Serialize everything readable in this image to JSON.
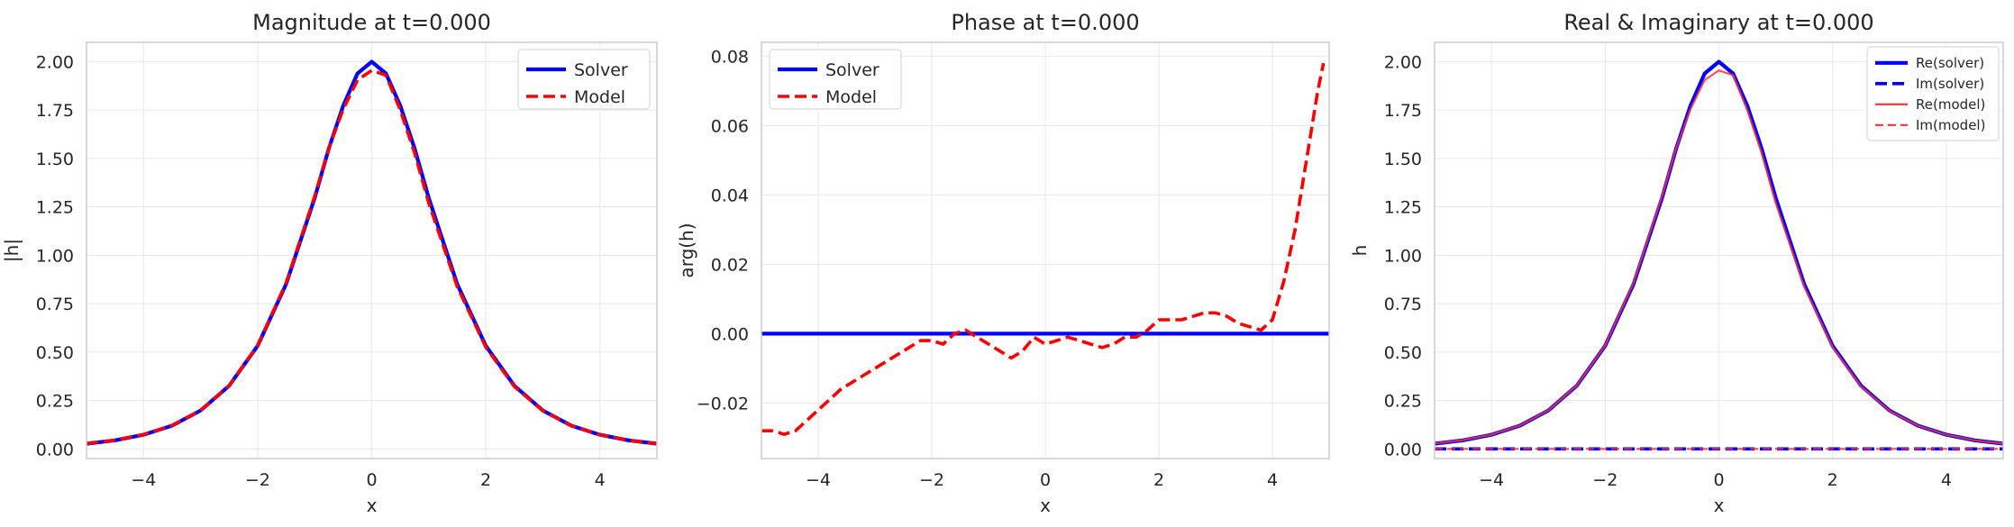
{
  "chart_data": [
    {
      "type": "line",
      "title": "Magnitude at t=0.000",
      "xlabel": "x",
      "ylabel": "|h|",
      "xlim": [
        -5.0,
        5.0
      ],
      "ylim": [
        -0.05,
        2.1
      ],
      "xticks": [
        -4,
        -2,
        0,
        2,
        4
      ],
      "xtick_labels": [
        "−4",
        "−2",
        "0",
        "2",
        "4"
      ],
      "yticks": [
        0.0,
        0.25,
        0.5,
        0.75,
        1.0,
        1.25,
        1.5,
        1.75,
        2.0
      ],
      "ytick_labels": [
        "0.00",
        "0.25",
        "0.50",
        "0.75",
        "1.00",
        "1.25",
        "1.50",
        "1.75",
        "2.00"
      ],
      "grid": true,
      "legend": "top-right",
      "x": [
        -5.0,
        -4.5,
        -4.0,
        -3.5,
        -3.0,
        -2.5,
        -2.0,
        -1.5,
        -1.0,
        -0.75,
        -0.5,
        -0.25,
        0.0,
        0.25,
        0.5,
        0.75,
        1.0,
        1.5,
        2.0,
        2.5,
        3.0,
        3.5,
        4.0,
        4.5,
        5.0
      ],
      "series": [
        {
          "name": "Solver",
          "color": "#0000ff",
          "style": "solid",
          "values": [
            0.027,
            0.044,
            0.073,
            0.12,
            0.198,
            0.326,
            0.532,
            0.851,
            1.296,
            1.553,
            1.773,
            1.939,
            2.0,
            1.939,
            1.773,
            1.553,
            1.296,
            0.851,
            0.532,
            0.326,
            0.198,
            0.12,
            0.073,
            0.044,
            0.027
          ]
        },
        {
          "name": "Model",
          "color": "#ff0000",
          "style": "dashed",
          "values": [
            0.028,
            0.045,
            0.074,
            0.121,
            0.199,
            0.327,
            0.534,
            0.858,
            1.305,
            1.555,
            1.755,
            1.905,
            1.955,
            1.93,
            1.75,
            1.53,
            1.27,
            0.838,
            0.525,
            0.322,
            0.196,
            0.12,
            0.073,
            0.044,
            0.027
          ]
        }
      ]
    },
    {
      "type": "line",
      "title": "Phase at t=0.000",
      "xlabel": "x",
      "ylabel": "arg(h)",
      "xlim": [
        -5.0,
        5.0
      ],
      "ylim": [
        -0.036,
        0.084
      ],
      "xticks": [
        -4,
        -2,
        0,
        2,
        4
      ],
      "xtick_labels": [
        "−4",
        "−2",
        "0",
        "2",
        "4"
      ],
      "yticks": [
        -0.02,
        0.0,
        0.02,
        0.04,
        0.06,
        0.08
      ],
      "ytick_labels": [
        "−0.02",
        "0.00",
        "0.02",
        "0.04",
        "0.06",
        "0.08"
      ],
      "grid": true,
      "legend": "top-left",
      "series": [
        {
          "name": "Solver",
          "color": "#0000ff",
          "style": "solid",
          "x": [
            -5.0,
            5.0
          ],
          "values": [
            0.0,
            0.0
          ]
        },
        {
          "name": "Model",
          "color": "#ff0000",
          "style": "dashed",
          "x": [
            -5.0,
            -4.8,
            -4.6,
            -4.4,
            -4.2,
            -4.0,
            -3.8,
            -3.6,
            -3.4,
            -3.2,
            -3.0,
            -2.8,
            -2.6,
            -2.4,
            -2.2,
            -2.0,
            -1.8,
            -1.6,
            -1.4,
            -1.2,
            -1.0,
            -0.8,
            -0.6,
            -0.4,
            -0.2,
            0.0,
            0.2,
            0.4,
            0.6,
            0.8,
            1.0,
            1.2,
            1.4,
            1.6,
            1.8,
            2.0,
            2.2,
            2.4,
            2.6,
            2.8,
            3.0,
            3.2,
            3.4,
            3.6,
            3.8,
            4.0,
            4.2,
            4.4,
            4.6,
            4.8,
            4.9
          ],
          "values": [
            -0.028,
            -0.028,
            -0.029,
            -0.028,
            -0.025,
            -0.022,
            -0.019,
            -0.016,
            -0.014,
            -0.012,
            -0.01,
            -0.008,
            -0.006,
            -0.004,
            -0.002,
            -0.002,
            -0.003,
            0.0,
            0.001,
            -0.001,
            -0.003,
            -0.005,
            -0.007,
            -0.005,
            -0.001,
            -0.003,
            -0.002,
            -0.001,
            -0.002,
            -0.003,
            -0.004,
            -0.003,
            -0.001,
            -0.001,
            0.001,
            0.004,
            0.004,
            0.004,
            0.005,
            0.006,
            0.006,
            0.005,
            0.003,
            0.002,
            0.001,
            0.004,
            0.015,
            0.03,
            0.05,
            0.07,
            0.078
          ]
        }
      ]
    },
    {
      "type": "line",
      "title": "Real & Imaginary at t=0.000",
      "xlabel": "x",
      "ylabel": "h",
      "xlim": [
        -5.0,
        5.0
      ],
      "ylim": [
        -0.05,
        2.1
      ],
      "xticks": [
        -4,
        -2,
        0,
        2,
        4
      ],
      "xtick_labels": [
        "−4",
        "−2",
        "0",
        "2",
        "4"
      ],
      "yticks": [
        0.0,
        0.25,
        0.5,
        0.75,
        1.0,
        1.25,
        1.5,
        1.75,
        2.0
      ],
      "ytick_labels": [
        "0.00",
        "0.25",
        "0.50",
        "0.75",
        "1.00",
        "1.25",
        "1.50",
        "1.75",
        "2.00"
      ],
      "grid": true,
      "legend": "top-right",
      "x": [
        -5.0,
        -4.5,
        -4.0,
        -3.5,
        -3.0,
        -2.5,
        -2.0,
        -1.5,
        -1.0,
        -0.75,
        -0.5,
        -0.25,
        0.0,
        0.25,
        0.5,
        0.75,
        1.0,
        1.5,
        2.0,
        2.5,
        3.0,
        3.5,
        4.0,
        4.5,
        5.0
      ],
      "series": [
        {
          "name": "Re(solver)",
          "color": "#0000ff",
          "style": "solid",
          "values": [
            0.027,
            0.044,
            0.073,
            0.12,
            0.198,
            0.326,
            0.532,
            0.851,
            1.296,
            1.553,
            1.773,
            1.939,
            2.0,
            1.939,
            1.773,
            1.553,
            1.296,
            0.851,
            0.532,
            0.326,
            0.198,
            0.12,
            0.073,
            0.044,
            0.027
          ]
        },
        {
          "name": "Im(solver)",
          "color": "#0000ff",
          "style": "dashed",
          "values": [
            0,
            0,
            0,
            0,
            0,
            0,
            0,
            0,
            0,
            0,
            0,
            0,
            0,
            0,
            0,
            0,
            0,
            0,
            0,
            0,
            0,
            0,
            0,
            0,
            0
          ]
        },
        {
          "name": "Re(model)",
          "color": "#ff3333",
          "style": "solid-thin",
          "values": [
            0.028,
            0.045,
            0.074,
            0.121,
            0.199,
            0.327,
            0.534,
            0.858,
            1.305,
            1.555,
            1.755,
            1.905,
            1.955,
            1.93,
            1.75,
            1.53,
            1.27,
            0.838,
            0.525,
            0.322,
            0.196,
            0.12,
            0.073,
            0.044,
            0.027
          ]
        },
        {
          "name": "Im(model)",
          "color": "#ff3333",
          "style": "dashed-thin",
          "values": [
            0,
            0,
            0,
            0,
            0,
            0,
            0,
            0,
            0,
            0,
            0,
            0,
            0,
            0,
            0,
            0,
            0,
            0,
            0,
            0,
            0,
            0,
            0,
            0,
            0
          ]
        }
      ]
    }
  ]
}
